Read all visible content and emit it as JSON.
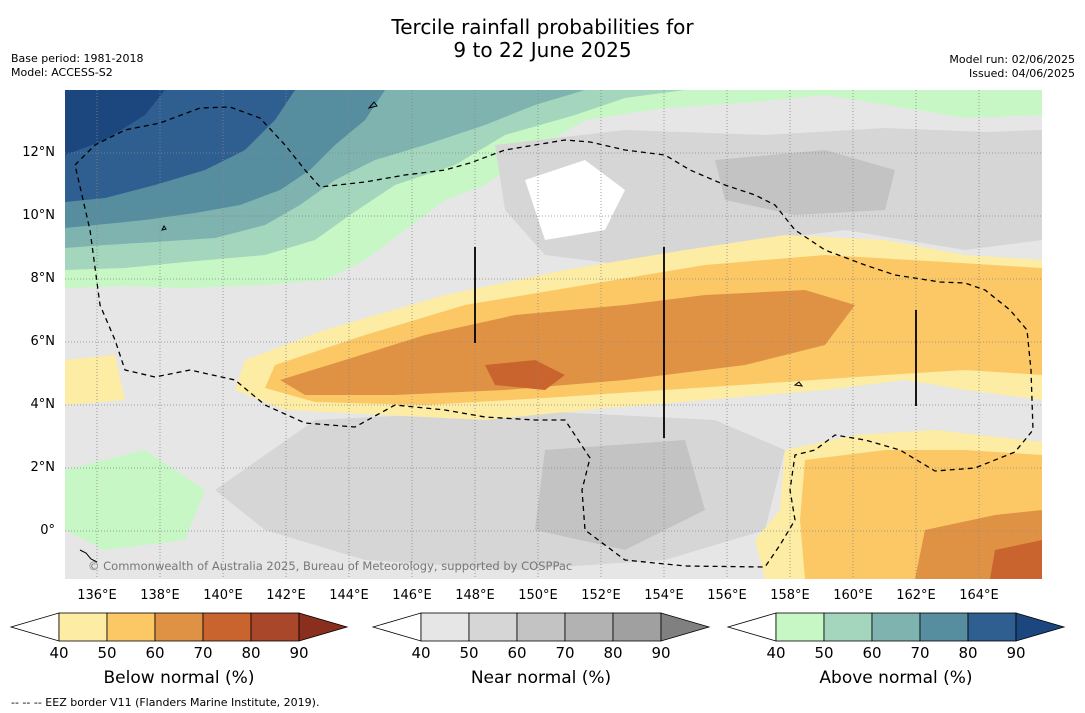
{
  "title_line1": "Tercile rainfall probabilities for",
  "title_line2": "9 to 22 June 2025",
  "base_period": "Base period: 1981-2018",
  "model": "Model: ACCESS-S2",
  "model_run": "Model run: 02/06/2025",
  "issued": "Issued: 04/06/2025",
  "copyright": "© Commonwealth of Australia 2025, Bureau of Meteorology, supported by COSPPac",
  "footnote": "--  --  -- EEZ border V11 (Flanders Marine Institute, 2019).",
  "lat_labels": [
    "12°N",
    "10°N",
    "8°N",
    "6°N",
    "4°N",
    "2°N",
    "0°"
  ],
  "lon_labels": [
    "136°E",
    "138°E",
    "140°E",
    "142°E",
    "144°E",
    "146°E",
    "148°E",
    "150°E",
    "152°E",
    "154°E",
    "156°E",
    "158°E",
    "160°E",
    "162°E",
    "164°E"
  ],
  "colorbars": [
    {
      "title": "Below normal (%)",
      "ticks": [
        "40",
        "50",
        "60",
        "70",
        "80",
        "90"
      ],
      "colors": [
        "#ffffff",
        "#fdeca4",
        "#fbc865",
        "#e09244",
        "#c9642f",
        "#a8472a",
        "#8a2f1d"
      ]
    },
    {
      "title": "Near normal (%)",
      "ticks": [
        "40",
        "50",
        "60",
        "70",
        "80",
        "90"
      ],
      "colors": [
        "#ffffff",
        "#e6e6e6",
        "#d6d6d6",
        "#c3c3c3",
        "#b2b2b2",
        "#a0a0a0",
        "#808080"
      ]
    },
    {
      "title": "Above normal (%)",
      "ticks": [
        "40",
        "50",
        "60",
        "70",
        "80",
        "90"
      ],
      "colors": [
        "#ffffff",
        "#c7f7c5",
        "#a3d6bc",
        "#7eb3b0",
        "#568d9f",
        "#2f5e90",
        "#1b477e"
      ]
    }
  ]
}
